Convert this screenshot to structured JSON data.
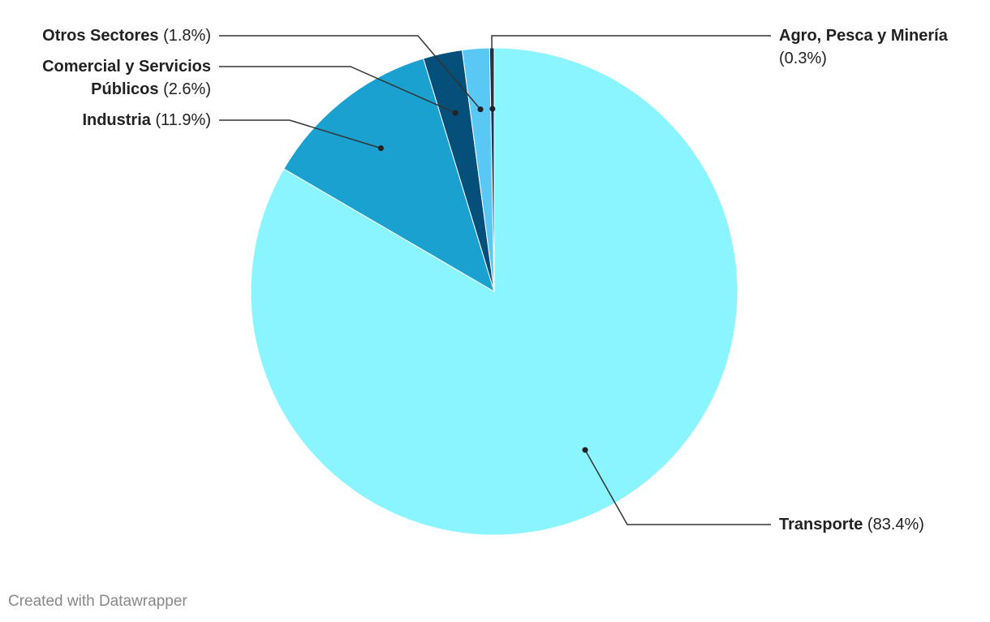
{
  "chart_data": {
    "type": "pie",
    "categories": [
      "Transporte",
      "Industria",
      "Comercial y Servicios Públicos",
      "Otros Sectores",
      "Agro, Pesca y Minería"
    ],
    "values": [
      83.4,
      11.9,
      2.6,
      1.8,
      0.3
    ],
    "value_labels": [
      "(83.4%)",
      "(11.9%)",
      "(2.6%)",
      "(1.8%)",
      "(0.3%)"
    ],
    "colors": [
      "#8af5ff",
      "#1aa1cf",
      "#05507a",
      "#5ac8f5",
      "#0d3a5c"
    ],
    "credit": "Created with Datawrapper"
  }
}
